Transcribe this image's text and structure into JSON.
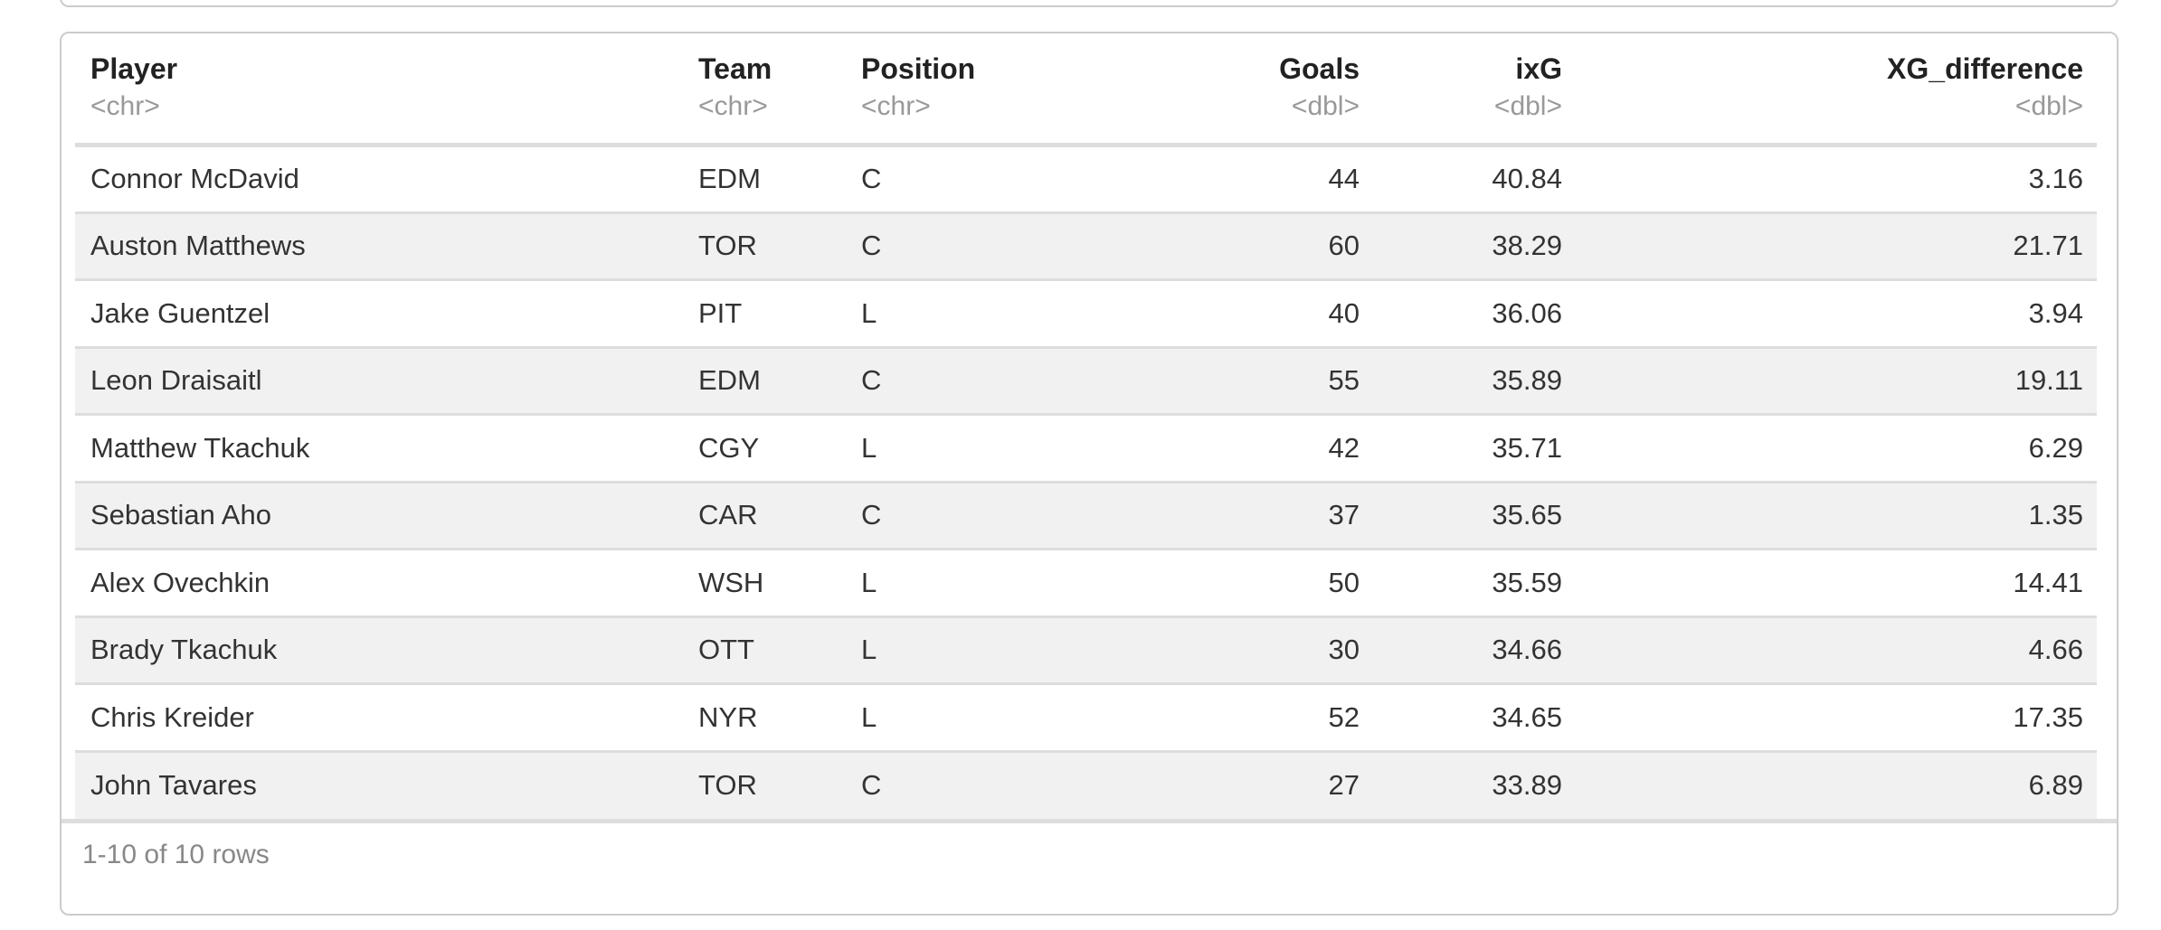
{
  "output_panel": {
    "table": {
      "columns": [
        {
          "label": "Player",
          "type": "<chr>",
          "align": "left"
        },
        {
          "label": "Team",
          "type": "<chr>",
          "align": "left"
        },
        {
          "label": "Position",
          "type": "<chr>",
          "align": "left"
        },
        {
          "label": "Goals",
          "type": "<dbl>",
          "align": "right"
        },
        {
          "label": "ixG",
          "type": "<dbl>",
          "align": "right"
        },
        {
          "label": "XG_difference",
          "type": "<dbl>",
          "align": "right"
        }
      ],
      "rows": [
        [
          "Connor McDavid",
          "EDM",
          "C",
          "44",
          "40.84",
          "3.16"
        ],
        [
          "Auston Matthews",
          "TOR",
          "C",
          "60",
          "38.29",
          "21.71"
        ],
        [
          "Jake Guentzel",
          "PIT",
          "L",
          "40",
          "36.06",
          "3.94"
        ],
        [
          "Leon Draisaitl",
          "EDM",
          "C",
          "55",
          "35.89",
          "19.11"
        ],
        [
          "Matthew Tkachuk",
          "CGY",
          "L",
          "42",
          "35.71",
          "6.29"
        ],
        [
          "Sebastian Aho",
          "CAR",
          "C",
          "37",
          "35.65",
          "1.35"
        ],
        [
          "Alex Ovechkin",
          "WSH",
          "L",
          "50",
          "35.59",
          "14.41"
        ],
        [
          "Brady Tkachuk",
          "OTT",
          "L",
          "30",
          "34.66",
          "4.66"
        ],
        [
          "Chris Kreider",
          "NYR",
          "L",
          "52",
          "34.65",
          "17.35"
        ],
        [
          "John Tavares",
          "TOR",
          "C",
          "27",
          "33.89",
          "6.89"
        ]
      ],
      "footer_text": "1-10 of 10 rows"
    },
    "colors": {
      "panel_border": "#cccccc",
      "separator": "#dddddd",
      "row_stripe": "#f1f1f1",
      "header_text": "#222222",
      "cell_text": "#333333",
      "type_text": "#999999",
      "footer_text": "#888888",
      "background": "#ffffff"
    }
  }
}
